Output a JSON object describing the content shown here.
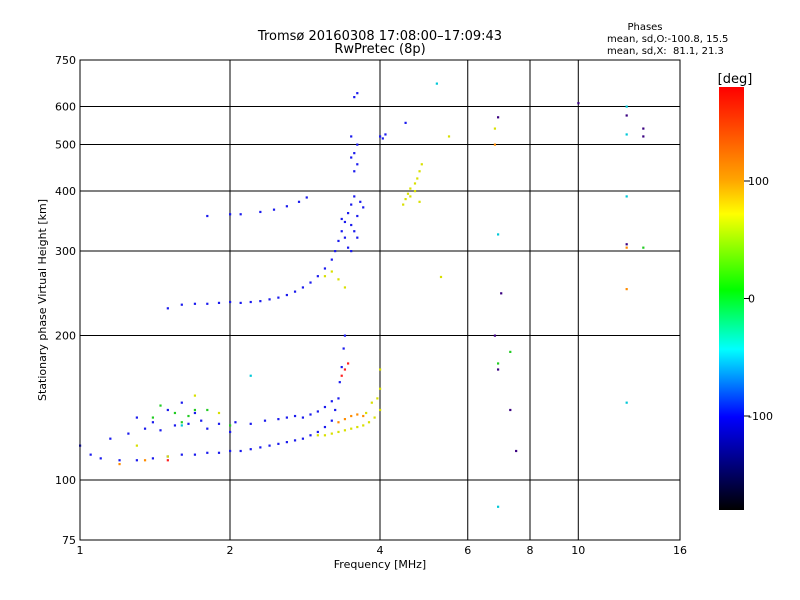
{
  "header": {
    "title_line1": "Tromsø 20160308 17:08:00–17:09:43",
    "title_line2": "RwPretec (8p)"
  },
  "phases_box": {
    "heading": "Phases",
    "line1": "mean, sd,O:-100.8, 15.5",
    "line2": "mean, sd,X:  81.1, 21.3"
  },
  "colorbar": {
    "label": "[deg]",
    "ticks": [
      "100",
      "0",
      "-100"
    ],
    "tick_values": [
      100,
      0,
      -100
    ],
    "range": [
      -180,
      180
    ]
  },
  "chart_data": {
    "type": "scatter",
    "xlabel": "Frequency [MHz]",
    "ylabel": "Stationary phase Virtual Height [km]",
    "xscale": "log",
    "yscale": "log",
    "xlim": [
      1,
      16
    ],
    "ylim": [
      75,
      750
    ],
    "xticks": [
      1,
      2,
      4,
      6,
      8,
      10,
      16
    ],
    "xtick_labels": [
      "1",
      "2",
      "4",
      "6",
      "8",
      "10",
      "16"
    ],
    "yticks": [
      75,
      100,
      200,
      300,
      400,
      500,
      600,
      750
    ],
    "ytick_labels": [
      "75",
      "100",
      "200",
      "300",
      "400",
      "500",
      "600",
      "750"
    ],
    "grid": true,
    "series": [
      {
        "color": "#1a1aee",
        "points": [
          [
            1.0,
            118
          ],
          [
            1.05,
            113
          ],
          [
            1.1,
            111
          ],
          [
            1.2,
            110
          ],
          [
            1.3,
            110
          ],
          [
            1.4,
            111
          ],
          [
            1.5,
            112
          ],
          [
            1.6,
            113
          ],
          [
            1.7,
            113
          ],
          [
            1.8,
            114
          ],
          [
            1.9,
            114
          ],
          [
            2.0,
            115
          ],
          [
            2.1,
            115
          ],
          [
            2.2,
            116
          ],
          [
            2.3,
            117
          ],
          [
            2.4,
            118
          ],
          [
            2.5,
            119
          ],
          [
            2.6,
            120
          ],
          [
            2.7,
            121
          ],
          [
            2.8,
            122
          ],
          [
            2.9,
            124
          ],
          [
            3.0,
            126
          ],
          [
            3.1,
            129
          ],
          [
            3.2,
            133
          ],
          [
            3.25,
            140
          ],
          [
            3.3,
            148
          ],
          [
            3.32,
            160
          ],
          [
            3.35,
            172
          ],
          [
            3.38,
            188
          ],
          [
            3.4,
            200
          ],
          [
            1.15,
            122
          ],
          [
            1.25,
            125
          ],
          [
            1.35,
            128
          ],
          [
            1.45,
            127
          ],
          [
            1.55,
            130
          ],
          [
            1.65,
            131
          ],
          [
            1.75,
            133
          ],
          [
            1.9,
            131
          ],
          [
            2.05,
            132
          ],
          [
            2.2,
            131
          ],
          [
            2.35,
            133
          ],
          [
            2.5,
            134
          ],
          [
            2.6,
            135
          ],
          [
            2.7,
            136
          ],
          [
            2.8,
            135
          ],
          [
            2.9,
            137
          ],
          [
            3.0,
            139
          ],
          [
            3.1,
            142
          ],
          [
            3.2,
            146
          ],
          [
            1.3,
            135
          ],
          [
            1.5,
            140
          ],
          [
            1.7,
            138
          ],
          [
            1.4,
            132
          ],
          [
            1.6,
            145
          ],
          [
            1.8,
            128
          ],
          [
            2.0,
            126
          ],
          [
            1.5,
            228
          ],
          [
            1.6,
            232
          ],
          [
            1.7,
            233
          ],
          [
            1.8,
            233
          ],
          [
            1.9,
            234
          ],
          [
            2.0,
            235
          ],
          [
            2.1,
            234
          ],
          [
            2.2,
            235
          ],
          [
            2.3,
            236
          ],
          [
            2.4,
            238
          ],
          [
            2.5,
            240
          ],
          [
            2.6,
            243
          ],
          [
            2.7,
            247
          ],
          [
            2.8,
            252
          ],
          [
            2.9,
            258
          ],
          [
            3.0,
            266
          ],
          [
            3.1,
            276
          ],
          [
            3.2,
            288
          ],
          [
            3.25,
            300
          ],
          [
            3.3,
            315
          ],
          [
            3.35,
            330
          ],
          [
            3.4,
            345
          ],
          [
            3.45,
            360
          ],
          [
            3.5,
            375
          ],
          [
            3.55,
            390
          ],
          [
            3.4,
            320
          ],
          [
            3.5,
            340
          ],
          [
            3.6,
            355
          ],
          [
            3.45,
            305
          ],
          [
            3.55,
            330
          ],
          [
            3.65,
            380
          ],
          [
            3.35,
            350
          ],
          [
            3.5,
            300
          ],
          [
            3.6,
            320
          ],
          [
            3.7,
            370
          ],
          [
            1.8,
            355
          ],
          [
            2.0,
            358
          ],
          [
            2.1,
            358
          ],
          [
            2.3,
            362
          ],
          [
            2.45,
            366
          ],
          [
            2.6,
            372
          ],
          [
            2.75,
            380
          ],
          [
            2.85,
            388
          ],
          [
            3.5,
            470
          ],
          [
            3.55,
            480
          ],
          [
            3.6,
            500
          ],
          [
            3.5,
            520
          ],
          [
            3.6,
            455
          ],
          [
            3.55,
            440
          ],
          [
            3.6,
            640
          ],
          [
            3.55,
            628
          ],
          [
            4.0,
            520
          ],
          [
            4.05,
            515
          ],
          [
            4.1,
            525
          ],
          [
            4.5,
            555
          ]
        ]
      },
      {
        "color": "#d8e000",
        "points": [
          [
            3.0,
            124
          ],
          [
            3.1,
            124
          ],
          [
            3.2,
            125
          ],
          [
            3.3,
            126
          ],
          [
            3.4,
            127
          ],
          [
            3.5,
            128
          ],
          [
            3.6,
            129
          ],
          [
            3.7,
            130
          ],
          [
            3.8,
            132
          ],
          [
            3.9,
            135
          ],
          [
            4.0,
            140
          ],
          [
            3.95,
            148
          ],
          [
            4.0,
            155
          ],
          [
            4.0,
            170
          ],
          [
            3.85,
            145
          ],
          [
            3.75,
            138
          ],
          [
            4.45,
            375
          ],
          [
            4.5,
            385
          ],
          [
            4.55,
            395
          ],
          [
            4.6,
            405
          ],
          [
            4.7,
            415
          ],
          [
            4.75,
            425
          ],
          [
            4.8,
            440
          ],
          [
            4.85,
            455
          ],
          [
            4.7,
            400
          ],
          [
            4.8,
            380
          ],
          [
            4.6,
            390
          ],
          [
            5.3,
            265
          ],
          [
            5.5,
            520
          ],
          [
            6.8,
            540
          ],
          [
            3.1,
            266
          ],
          [
            3.2,
            272
          ],
          [
            3.3,
            262
          ],
          [
            3.4,
            252
          ],
          [
            1.3,
            118
          ],
          [
            1.5,
            112
          ],
          [
            1.7,
            150
          ],
          [
            1.9,
            138
          ]
        ]
      },
      {
        "color": "#ff8c00",
        "points": [
          [
            3.3,
            132
          ],
          [
            3.4,
            134
          ],
          [
            3.5,
            136
          ],
          [
            3.6,
            137
          ],
          [
            3.7,
            136
          ],
          [
            1.2,
            108
          ],
          [
            1.35,
            110
          ],
          [
            6.8,
            500
          ],
          [
            12.5,
            305
          ],
          [
            12.5,
            250
          ]
        ]
      },
      {
        "color": "#22cc22",
        "points": [
          [
            1.4,
            135
          ],
          [
            1.55,
            138
          ],
          [
            1.7,
            140
          ],
          [
            1.6,
            132
          ],
          [
            1.8,
            140
          ],
          [
            1.45,
            143
          ],
          [
            1.65,
            136
          ],
          [
            2.0,
            130
          ],
          [
            13.5,
            305
          ],
          [
            7.3,
            185
          ],
          [
            6.9,
            175
          ]
        ]
      },
      {
        "color": "#00c8d8",
        "points": [
          [
            5.2,
            670
          ],
          [
            6.9,
            325
          ],
          [
            12.5,
            600
          ],
          [
            12.5,
            390
          ],
          [
            12.5,
            525
          ],
          [
            12.5,
            145
          ],
          [
            2.2,
            165
          ],
          [
            1.6,
            130
          ],
          [
            6.9,
            88
          ]
        ]
      },
      {
        "color": "#ff2020",
        "points": [
          [
            3.35,
            165
          ],
          [
            3.4,
            170
          ],
          [
            3.45,
            175
          ],
          [
            1.5,
            110
          ]
        ]
      },
      {
        "color": "#3a0080",
        "points": [
          [
            6.8,
            200
          ],
          [
            6.9,
            170
          ],
          [
            7.0,
            245
          ],
          [
            7.3,
            140
          ],
          [
            7.5,
            115
          ],
          [
            6.9,
            570
          ],
          [
            10.0,
            610
          ],
          [
            12.5,
            575
          ],
          [
            13.5,
            540
          ],
          [
            13.5,
            520
          ],
          [
            12.5,
            310
          ]
        ]
      }
    ]
  }
}
